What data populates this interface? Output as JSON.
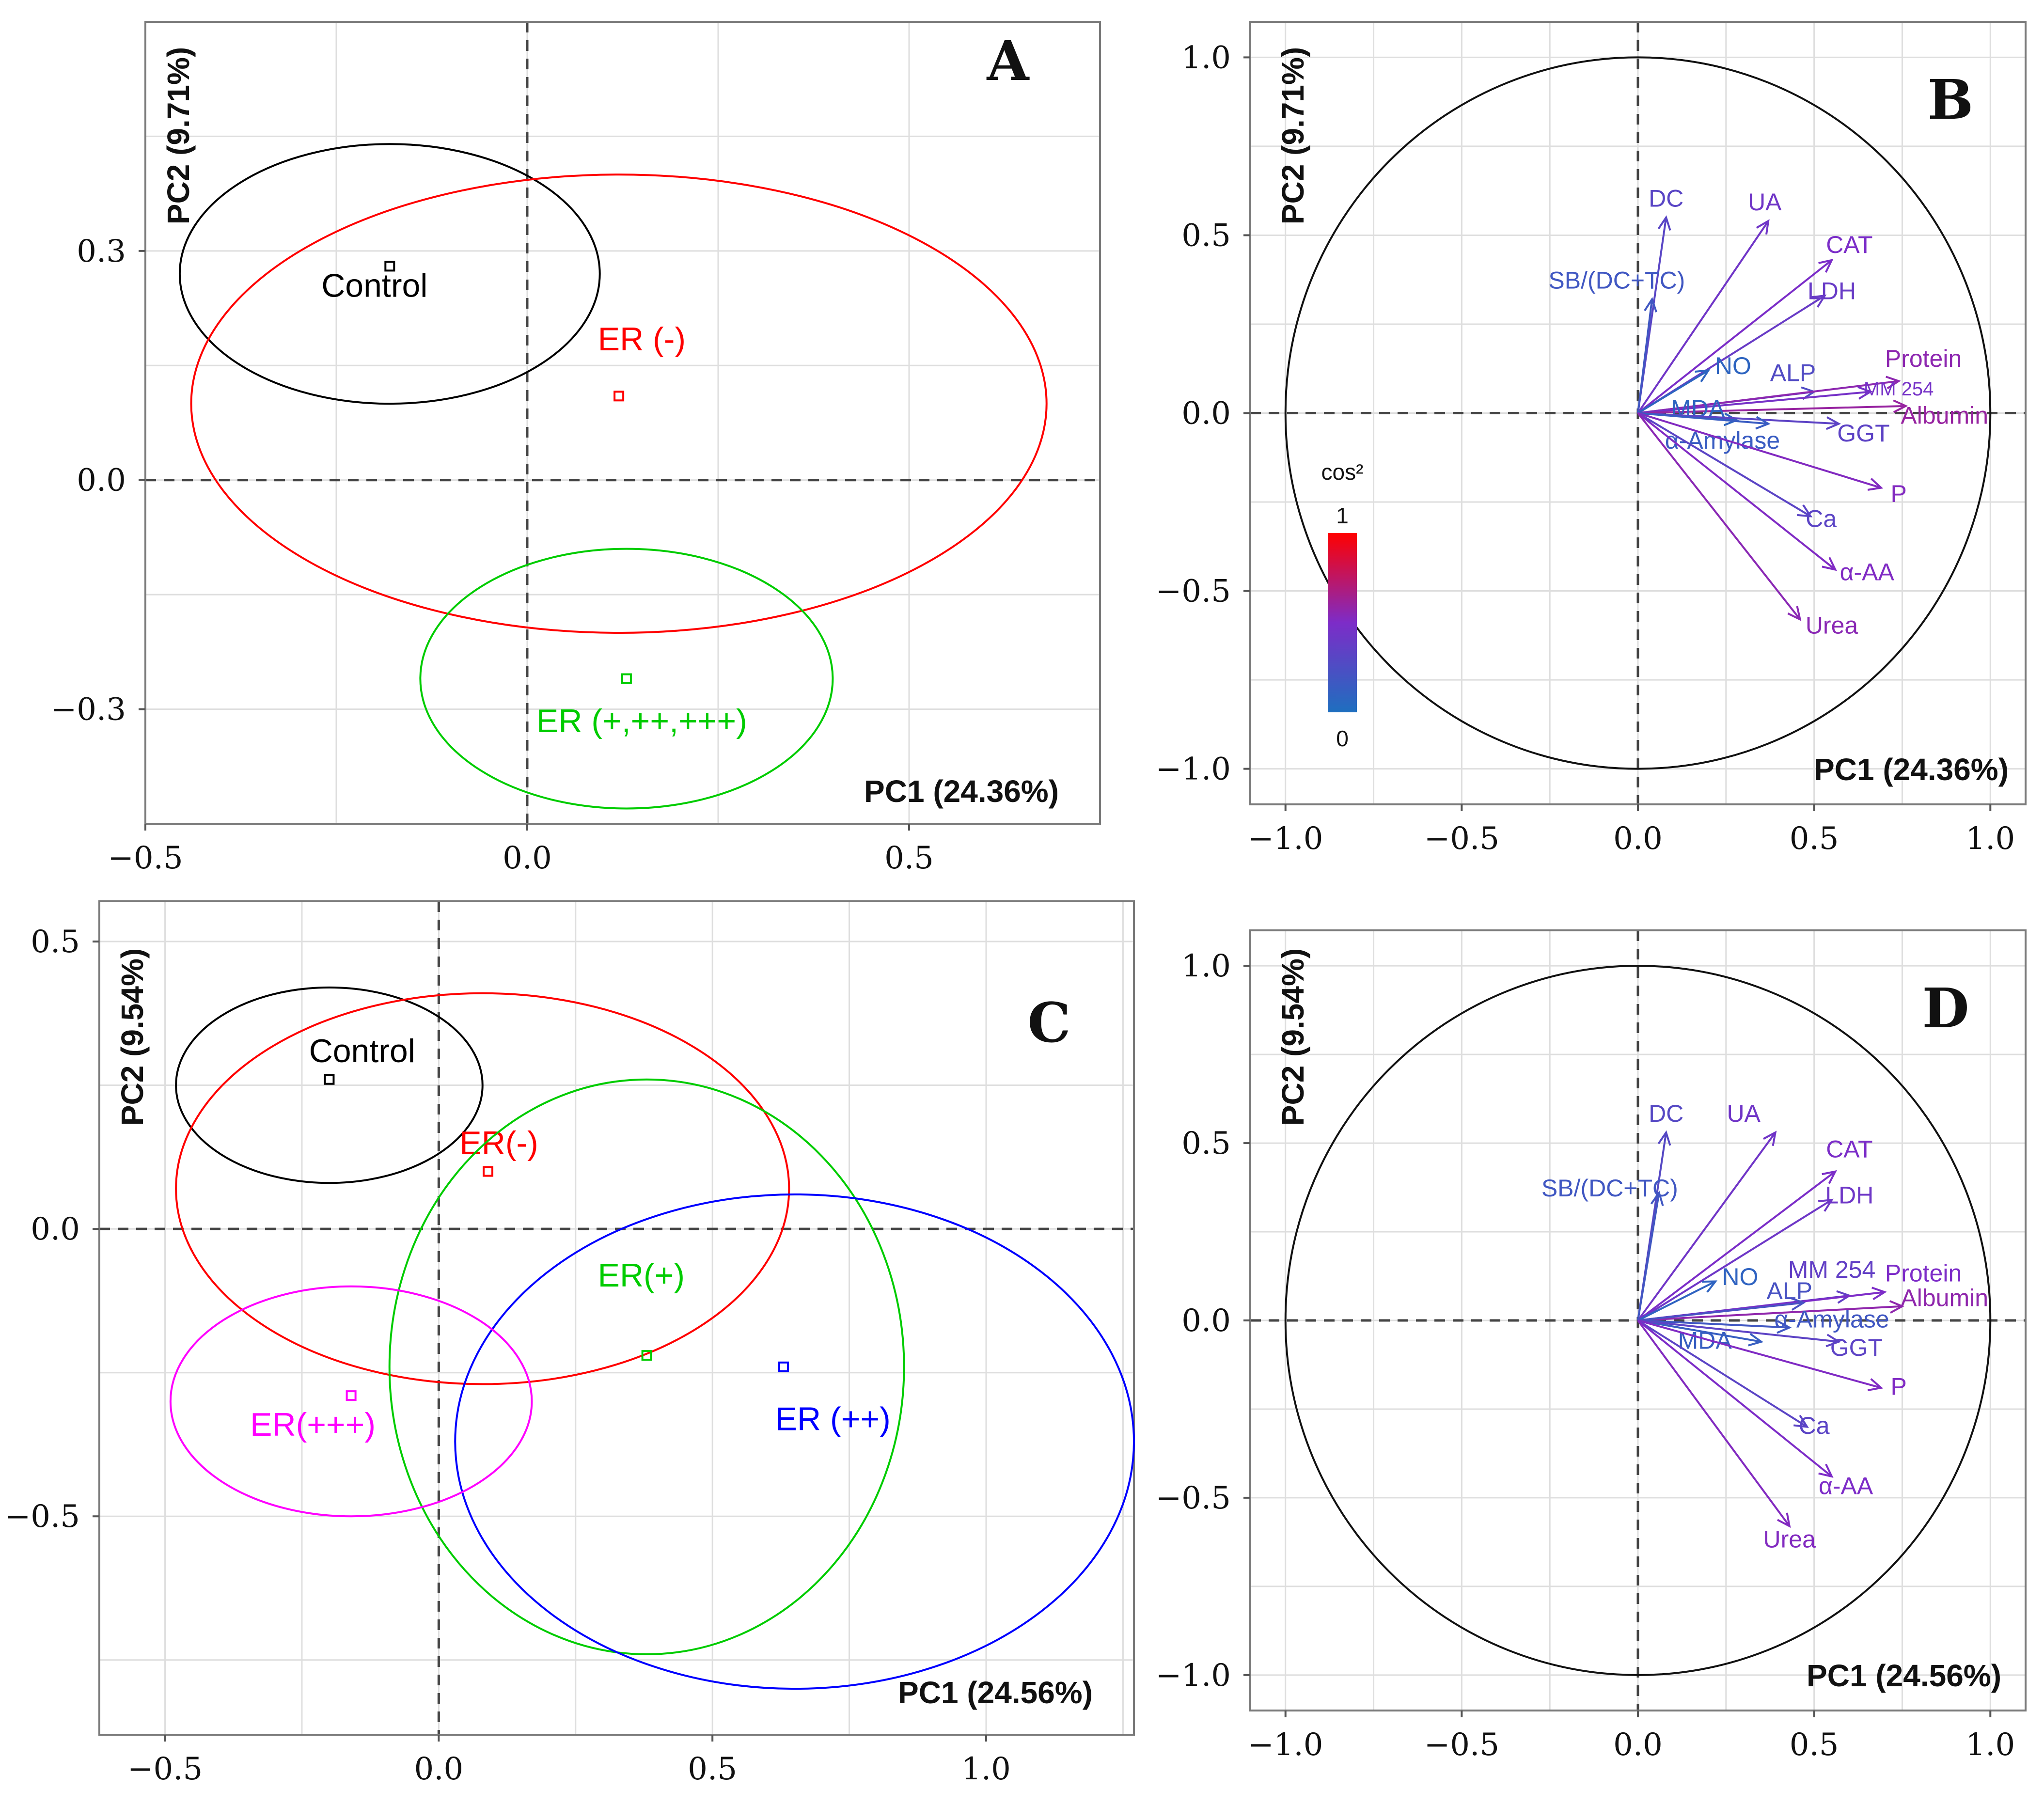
{
  "chart_data": [
    {
      "panel": "A",
      "type": "scatter",
      "subtype": "pca-individuals",
      "xlabel": "PC1 (24.36%)",
      "ylabel": "PC2 (9.71%)",
      "xlim": [
        -0.5,
        0.75
      ],
      "ylim": [
        -0.45,
        0.6
      ],
      "xticks": [
        -0.5,
        0.0,
        0.5
      ],
      "xtick_labels": [
        "−0.5",
        "0.0",
        "0.5"
      ],
      "yticks": [
        -0.3,
        0.0,
        0.3
      ],
      "ytick_labels": [
        "−0.3",
        "0.0",
        "0.3"
      ],
      "groups": [
        {
          "name": "Control",
          "color": "#000000",
          "x": -0.18,
          "y": 0.28,
          "ellipse": {
            "cx": -0.18,
            "cy": 0.27,
            "rx": 0.275,
            "ry": 0.17
          },
          "label_at": [
            -0.2,
            0.24
          ]
        },
        {
          "name": "ER (-)",
          "color": "#ff0000",
          "x": 0.12,
          "y": 0.11,
          "ellipse": {
            "cx": 0.12,
            "cy": 0.1,
            "rx": 0.56,
            "ry": 0.3
          },
          "label_at": [
            0.15,
            0.17
          ]
        },
        {
          "name": "ER (+,++,+++)",
          "color": "#00cc00",
          "x": 0.13,
          "y": -0.26,
          "ellipse": {
            "cx": 0.13,
            "cy": -0.26,
            "rx": 0.27,
            "ry": 0.17
          },
          "label_at": [
            0.15,
            -0.33
          ]
        }
      ]
    },
    {
      "panel": "B",
      "type": "line",
      "subtype": "pca-variable-correlation-circle",
      "xlabel": "PC1 (24.36%)",
      "ylabel": "PC2 (9.71%)",
      "xlim": [
        -1.1,
        1.1
      ],
      "ylim": [
        -1.1,
        1.1
      ],
      "ticks": [
        -1.0,
        -0.5,
        0.0,
        0.5,
        1.0
      ],
      "tick_labels": [
        "−1.0",
        "−0.5",
        "0.0",
        "0.5",
        "1.0"
      ],
      "colorbar": {
        "title": "cos²",
        "max_label": "1",
        "min_label": "0",
        "low_color": "#1e6fbf",
        "mid_color": "#7d2cc8",
        "high_color": "#ff0000"
      },
      "variables": [
        {
          "name": "DC",
          "x": 0.08,
          "y": 0.55,
          "cos2": 0.31,
          "label_at": [
            0.08,
            0.58
          ]
        },
        {
          "name": "UA",
          "x": 0.37,
          "y": 0.54,
          "cos2": 0.43,
          "label_at": [
            0.36,
            0.57
          ]
        },
        {
          "name": "CAT",
          "x": 0.55,
          "y": 0.43,
          "cos2": 0.49,
          "label_at": [
            0.6,
            0.45
          ]
        },
        {
          "name": "LDH",
          "x": 0.53,
          "y": 0.33,
          "cos2": 0.39,
          "label_at": [
            0.55,
            0.32
          ]
        },
        {
          "name": "SB/(DC+TC)",
          "x": 0.04,
          "y": 0.32,
          "cos2": 0.18,
          "label_at": [
            -0.06,
            0.35
          ]
        },
        {
          "name": "NO",
          "x": 0.2,
          "y": 0.12,
          "cos2": 0.08,
          "label_at": [
            0.27,
            0.11
          ]
        },
        {
          "name": "ALP",
          "x": 0.5,
          "y": 0.06,
          "cos2": 0.27,
          "label_at": [
            0.44,
            0.09
          ]
        },
        {
          "name": "Protein",
          "x": 0.74,
          "y": 0.09,
          "cos2": 0.56,
          "label_at": [
            0.81,
            0.13
          ]
        },
        {
          "name": "MM 254",
          "x": 0.66,
          "y": 0.06,
          "cos2": 0.46,
          "label_at": [
            0.74,
            0.05
          ],
          "small": true
        },
        {
          "name": "Albumin",
          "x": 0.76,
          "y": 0.02,
          "cos2": 0.6,
          "label_at": [
            0.87,
            -0.03
          ]
        },
        {
          "name": "MDA",
          "x": 0.28,
          "y": -0.02,
          "cos2": 0.08,
          "label_at": [
            0.17,
            -0.01
          ]
        },
        {
          "name": "GGT",
          "x": 0.57,
          "y": -0.03,
          "cos2": 0.33,
          "label_at": [
            0.64,
            -0.08
          ]
        },
        {
          "name": "α-Amylase",
          "x": 0.37,
          "y": -0.03,
          "cos2": 0.14,
          "label_at": [
            0.24,
            -0.1
          ]
        },
        {
          "name": "P",
          "x": 0.69,
          "y": -0.21,
          "cos2": 0.52,
          "label_at": [
            0.74,
            -0.25
          ]
        },
        {
          "name": "Ca",
          "x": 0.49,
          "y": -0.29,
          "cos2": 0.32,
          "label_at": [
            0.52,
            -0.32
          ]
        },
        {
          "name": "α-AA",
          "x": 0.56,
          "y": -0.44,
          "cos2": 0.51,
          "label_at": [
            0.65,
            -0.47
          ]
        },
        {
          "name": "Urea",
          "x": 0.46,
          "y": -0.58,
          "cos2": 0.55,
          "label_at": [
            0.55,
            -0.62
          ]
        }
      ]
    },
    {
      "panel": "C",
      "type": "scatter",
      "subtype": "pca-individuals",
      "xlabel": "PC1 (24.56%)",
      "ylabel": "PC2 (9.54%)",
      "xlim": [
        -0.62,
        1.27
      ],
      "ylim": [
        -0.88,
        0.57
      ],
      "xticks": [
        -0.5,
        0.0,
        0.5,
        1.0
      ],
      "xtick_labels": [
        "−0.5",
        "0.0",
        "0.5",
        "1.0"
      ],
      "yticks": [
        -0.5,
        0.0,
        0.5
      ],
      "ytick_labels": [
        "−0.5",
        "0.0",
        "0.5"
      ],
      "groups": [
        {
          "name": "Control",
          "color": "#000000",
          "x": -0.2,
          "y": 0.26,
          "ellipse": {
            "cx": -0.2,
            "cy": 0.25,
            "rx": 0.28,
            "ry": 0.17
          },
          "label_at": [
            -0.14,
            0.29
          ]
        },
        {
          "name": "ER(-)",
          "color": "#ff0000",
          "x": 0.09,
          "y": 0.1,
          "ellipse": {
            "cx": 0.08,
            "cy": 0.07,
            "rx": 0.56,
            "ry": 0.34
          },
          "label_at": [
            0.11,
            0.13
          ]
        },
        {
          "name": "ER(+)",
          "color": "#00cc00",
          "x": 0.38,
          "y": -0.22,
          "ellipse": {
            "cx": 0.38,
            "cy": -0.24,
            "rx": 0.47,
            "ry": 0.5
          },
          "label_at": [
            0.37,
            -0.1
          ]
        },
        {
          "name": "ER (++)",
          "color": "#0000ff",
          "x": 0.63,
          "y": -0.24,
          "ellipse": {
            "cx": 0.65,
            "cy": -0.37,
            "rx": 0.62,
            "ry": 0.43
          },
          "label_at": [
            0.72,
            -0.35
          ]
        },
        {
          "name": "ER(+++)",
          "color": "#ff00ff",
          "x": -0.16,
          "y": -0.29,
          "ellipse": {
            "cx": -0.16,
            "cy": -0.3,
            "rx": 0.33,
            "ry": 0.2
          },
          "label_at": [
            -0.23,
            -0.36
          ]
        }
      ]
    },
    {
      "panel": "D",
      "type": "line",
      "subtype": "pca-variable-correlation-circle",
      "xlabel": "PC1 (24.56%)",
      "ylabel": "PC2 (9.54%)",
      "xlim": [
        -1.1,
        1.1
      ],
      "ylim": [
        -1.1,
        1.1
      ],
      "ticks": [
        -1.0,
        -0.5,
        0.0,
        0.5,
        1.0
      ],
      "tick_labels": [
        "−1.0",
        "−0.5",
        "0.0",
        "0.5",
        "1.0"
      ],
      "variables": [
        {
          "name": "DC",
          "x": 0.08,
          "y": 0.53,
          "cos2": 0.29,
          "label_at": [
            0.08,
            0.56
          ]
        },
        {
          "name": "UA",
          "x": 0.39,
          "y": 0.53,
          "cos2": 0.43,
          "label_at": [
            0.3,
            0.56
          ]
        },
        {
          "name": "CAT",
          "x": 0.56,
          "y": 0.42,
          "cos2": 0.49,
          "label_at": [
            0.6,
            0.46
          ]
        },
        {
          "name": "LDH",
          "x": 0.55,
          "y": 0.34,
          "cos2": 0.42,
          "label_at": [
            0.6,
            0.33
          ]
        },
        {
          "name": "SB/(DC+TC)",
          "x": 0.06,
          "y": 0.36,
          "cos2": 0.18,
          "label_at": [
            -0.08,
            0.35
          ]
        },
        {
          "name": "NO",
          "x": 0.22,
          "y": 0.11,
          "cos2": 0.09,
          "label_at": [
            0.29,
            0.1
          ]
        },
        {
          "name": "MM 254",
          "x": 0.6,
          "y": 0.07,
          "cos2": 0.36,
          "label_at": [
            0.55,
            0.12
          ]
        },
        {
          "name": "Protein",
          "x": 0.7,
          "y": 0.08,
          "cos2": 0.5,
          "label_at": [
            0.81,
            0.11
          ]
        },
        {
          "name": "Albumin",
          "x": 0.75,
          "y": 0.04,
          "cos2": 0.57,
          "label_at": [
            0.87,
            0.04
          ]
        },
        {
          "name": "ALP",
          "x": 0.47,
          "y": 0.05,
          "cos2": 0.22,
          "label_at": [
            0.43,
            0.06
          ]
        },
        {
          "name": "α-Amylase",
          "x": 0.43,
          "y": -0.02,
          "cos2": 0.18,
          "label_at": [
            0.55,
            -0.02
          ]
        },
        {
          "name": "MDA",
          "x": 0.35,
          "y": -0.06,
          "cos2": 0.13,
          "label_at": [
            0.19,
            -0.08
          ]
        },
        {
          "name": "GGT",
          "x": 0.57,
          "y": -0.06,
          "cos2": 0.33,
          "label_at": [
            0.62,
            -0.1
          ]
        },
        {
          "name": "P",
          "x": 0.69,
          "y": -0.19,
          "cos2": 0.51,
          "label_at": [
            0.74,
            -0.21
          ]
        },
        {
          "name": "Ca",
          "x": 0.48,
          "y": -0.3,
          "cos2": 0.32,
          "label_at": [
            0.5,
            -0.32
          ]
        },
        {
          "name": "α-AA",
          "x": 0.55,
          "y": -0.44,
          "cos2": 0.5,
          "label_at": [
            0.59,
            -0.49
          ]
        },
        {
          "name": "Urea",
          "x": 0.43,
          "y": -0.58,
          "cos2": 0.52,
          "label_at": [
            0.43,
            -0.64
          ]
        }
      ]
    }
  ]
}
